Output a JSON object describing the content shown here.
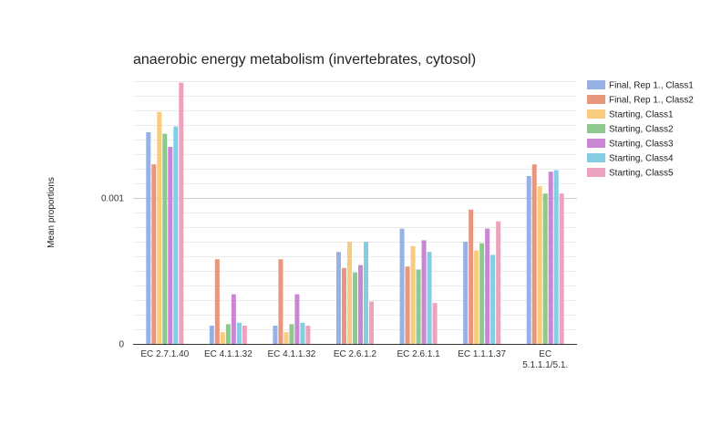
{
  "chart_data": {
    "type": "bar",
    "title": "anaerobic energy metabolism (invertebrates, cytosol)",
    "xlabel": "",
    "ylabel": "Mean proportions",
    "y_ticks": [
      {
        "value": 0,
        "label": "0"
      },
      {
        "value": 0.001,
        "label": "0.001"
      }
    ],
    "ylim": [
      0,
      0.0018
    ],
    "grid": true,
    "legend_position": "right",
    "categories": [
      [
        "EC 2.7.1.40"
      ],
      [
        "EC 4.1.1.32"
      ],
      [
        "EC 4.1.1.32"
      ],
      [
        "EC 2.6.1.2"
      ],
      [
        "EC 2.6.1.1"
      ],
      [
        "EC 1.1.1.37"
      ],
      [
        "EC",
        "5.1.1.1/5.1."
      ]
    ],
    "series": [
      {
        "name": "Final, Rep 1., Class1",
        "color": "#97b1e5",
        "values": [
          0.00145,
          0.000125,
          0.000125,
          0.00063,
          0.00079,
          0.0007,
          0.00115
        ]
      },
      {
        "name": "Final, Rep 1., Class2",
        "color": "#e9967e",
        "values": [
          0.00123,
          0.00058,
          0.00058,
          0.00052,
          0.00053,
          0.00092,
          0.00123
        ]
      },
      {
        "name": "Starting, Class1",
        "color": "#f8cb7f",
        "values": [
          0.00159,
          8e-05,
          8e-05,
          0.0007,
          0.00067,
          0.00064,
          0.00108
        ]
      },
      {
        "name": "Starting, Class2",
        "color": "#8ec88e",
        "values": [
          0.00144,
          0.000135,
          0.000135,
          0.00049,
          0.00051,
          0.00069,
          0.00103
        ]
      },
      {
        "name": "Starting, Class3",
        "color": "#c886d3",
        "values": [
          0.00135,
          0.00034,
          0.00034,
          0.00054,
          0.00071,
          0.00079,
          0.00118
        ]
      },
      {
        "name": "Starting, Class4",
        "color": "#84cde3",
        "values": [
          0.00149,
          0.000145,
          0.000145,
          0.0007,
          0.00063,
          0.00061,
          0.00119
        ]
      },
      {
        "name": "Starting, Class5",
        "color": "#eda3bf",
        "values": [
          0.00179,
          0.000125,
          0.000125,
          0.00029,
          0.00028,
          0.00084,
          0.00103
        ]
      }
    ]
  }
}
